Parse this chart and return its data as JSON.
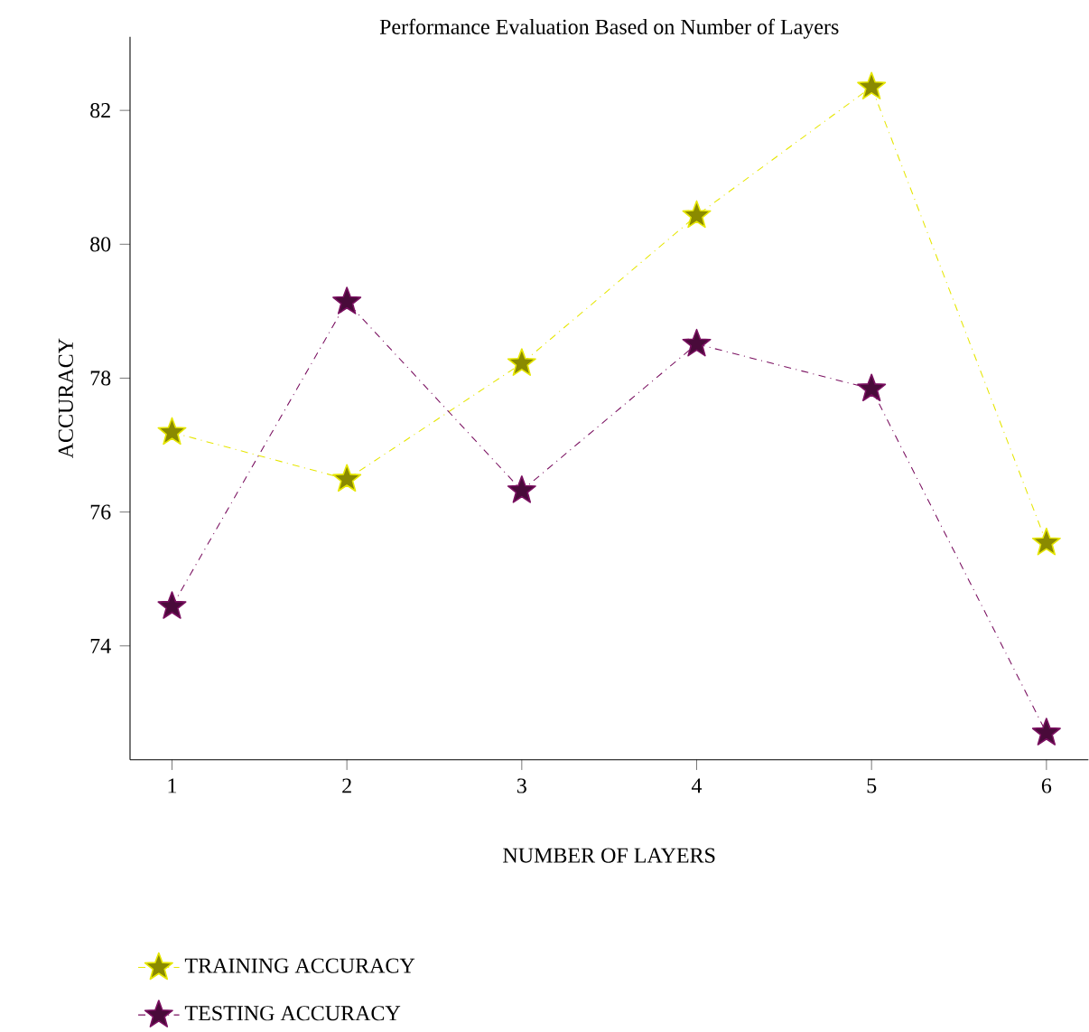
{
  "chart_data": {
    "type": "line",
    "title": "Performance Evaluation Based on Number of Layers",
    "xlabel": "NUMBER OF LAYERS",
    "ylabel": "ACCURACY",
    "x": [
      1,
      2,
      3,
      4,
      5,
      6
    ],
    "series": [
      {
        "name": "TRAINING ACCURACY",
        "color": "#e6e600",
        "values": [
          77.19,
          76.49,
          78.22,
          80.43,
          82.35,
          75.54
        ]
      },
      {
        "name": "TESTING ACCURACY",
        "color": "#7a1060",
        "values": [
          74.59,
          79.14,
          76.32,
          78.51,
          77.84,
          72.7
        ]
      }
    ],
    "xlim": [
      0.76,
      6.24
    ],
    "ylim": [
      72.3,
      83.1
    ],
    "xticks": [
      1,
      2,
      3,
      4,
      5,
      6
    ],
    "yticks": [
      74,
      76,
      78,
      80,
      82
    ],
    "grid": false,
    "legend": "bottom",
    "marker": "star",
    "line_style": "dashed"
  }
}
